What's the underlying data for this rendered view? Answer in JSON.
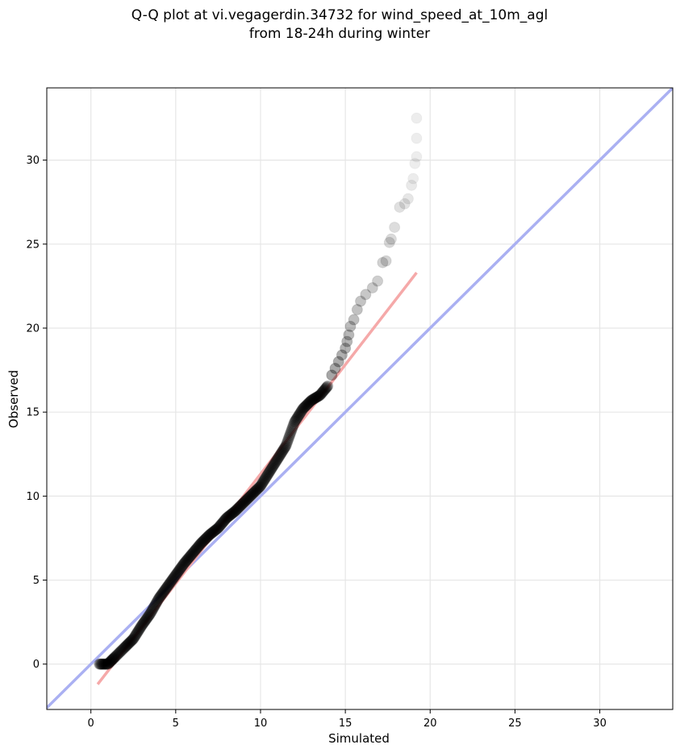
{
  "chart_data": {
    "type": "scatter",
    "title_line1": "Q-Q plot at vi.vegagerdin.34732 for wind_speed_at_10m_agl",
    "title_line2": "from 18-24h during winter",
    "xlabel": "Simulated",
    "ylabel": "Observed",
    "xlim": [
      -2.6,
      34.3
    ],
    "ylim": [
      -2.7,
      34.3
    ],
    "xticks": [
      0,
      5,
      10,
      15,
      20,
      25,
      30
    ],
    "yticks": [
      0,
      5,
      10,
      15,
      20,
      25,
      30
    ],
    "grid": true,
    "colors": {
      "points": "#000000",
      "identity_line": "#aab0f2",
      "fit_line": "#f5a9a9"
    },
    "identity_line": {
      "x": [
        -2.6,
        34.3
      ],
      "y": [
        -2.6,
        34.3
      ]
    },
    "fit_line": {
      "x": [
        0.4,
        19.2
      ],
      "y": [
        -1.2,
        23.3
      ]
    },
    "qq_curve": {
      "x": [
        0.5,
        1.0,
        1.4,
        2.0,
        2.5,
        3.0,
        3.5,
        4.0,
        4.5,
        5.0,
        5.5,
        6.0,
        6.5,
        7.0,
        7.5,
        8.0,
        8.5,
        9.0,
        9.5,
        10.0,
        10.5,
        11.0,
        11.5,
        12.0,
        12.5,
        13.0,
        13.5,
        14.0
      ],
      "y": [
        0.0,
        0.0,
        0.4,
        1.0,
        1.5,
        2.3,
        3.0,
        3.9,
        4.6,
        5.3,
        6.0,
        6.6,
        7.2,
        7.7,
        8.1,
        8.7,
        9.1,
        9.6,
        10.1,
        10.6,
        11.4,
        12.2,
        13.0,
        14.4,
        15.2,
        15.7,
        16.0,
        16.6
      ]
    },
    "tail_points": {
      "x": [
        14.2,
        14.4,
        14.6,
        14.8,
        15.0,
        15.1,
        15.2,
        15.3,
        15.5,
        15.7,
        15.9,
        16.2,
        16.6,
        16.9,
        17.2,
        17.4,
        17.6,
        17.7,
        17.9,
        18.2,
        18.5,
        18.7,
        18.9,
        19.0,
        19.1,
        19.2,
        19.2,
        19.2
      ],
      "y": [
        17.2,
        17.6,
        18.0,
        18.4,
        18.8,
        19.2,
        19.6,
        20.1,
        20.5,
        21.1,
        21.6,
        22.0,
        22.4,
        22.8,
        23.9,
        24.0,
        25.1,
        25.3,
        26.0,
        27.2,
        27.4,
        27.7,
        28.5,
        28.9,
        29.8,
        30.2,
        31.3,
        32.5
      ]
    }
  }
}
